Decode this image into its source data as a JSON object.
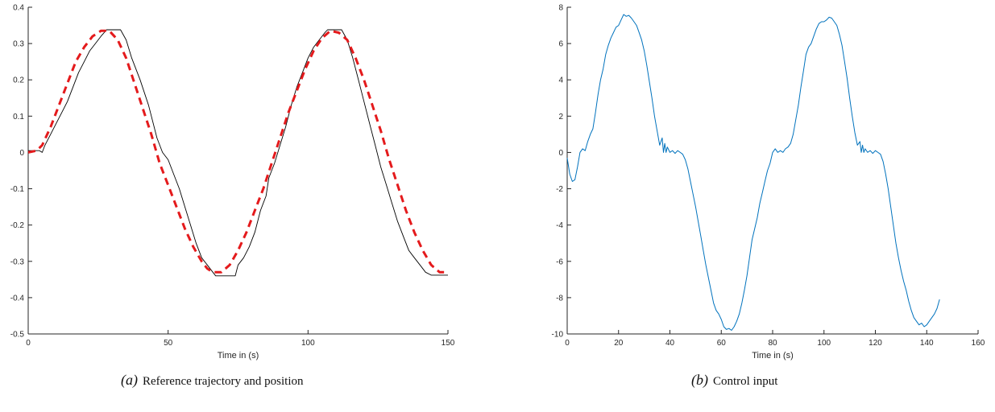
{
  "chart_data": [
    {
      "type": "line",
      "title": "",
      "xlabel": "Time in (s)",
      "ylabel": "",
      "xlim": [
        0,
        150
      ],
      "ylim": [
        -0.5,
        0.4
      ],
      "xticks": [
        0,
        50,
        100,
        150
      ],
      "yticks": [
        0.4,
        0.3,
        0.2,
        0.1,
        0,
        -0.1,
        -0.2,
        -0.3,
        -0.4,
        -0.5
      ],
      "grid": false,
      "caption_tag": "(a)",
      "caption_text": "Reference trajectory and position",
      "series": [
        {
          "color": "#000000",
          "style": "solid",
          "points": [
            [
              0,
              0.005
            ],
            [
              4,
              0.005
            ],
            [
              5,
              0.0
            ],
            [
              6,
              0.02
            ],
            [
              8,
              0.05
            ],
            [
              10,
              0.08
            ],
            [
              12,
              0.11
            ],
            [
              14,
              0.14
            ],
            [
              16,
              0.18
            ],
            [
              18,
              0.22
            ],
            [
              20,
              0.25
            ],
            [
              22,
              0.28
            ],
            [
              24,
              0.3
            ],
            [
              26,
              0.32
            ],
            [
              28,
              0.338
            ],
            [
              33,
              0.338
            ],
            [
              35,
              0.31
            ],
            [
              37,
              0.26
            ],
            [
              40,
              0.2
            ],
            [
              43,
              0.13
            ],
            [
              46,
              0.04
            ],
            [
              48,
              0.0
            ],
            [
              50,
              -0.02
            ],
            [
              52,
              -0.06
            ],
            [
              54,
              -0.1
            ],
            [
              56,
              -0.15
            ],
            [
              58,
              -0.2
            ],
            [
              60,
              -0.25
            ],
            [
              62,
              -0.29
            ],
            [
              64,
              -0.31
            ],
            [
              66,
              -0.33
            ],
            [
              67,
              -0.34
            ],
            [
              74,
              -0.34
            ],
            [
              75,
              -0.31
            ],
            [
              77,
              -0.29
            ],
            [
              79,
              -0.26
            ],
            [
              81,
              -0.22
            ],
            [
              83,
              -0.16
            ],
            [
              85,
              -0.12
            ],
            [
              86,
              -0.07
            ],
            [
              88,
              -0.03
            ],
            [
              90,
              0.02
            ],
            [
              92,
              0.07
            ],
            [
              94,
              0.13
            ],
            [
              96,
              0.18
            ],
            [
              98,
              0.22
            ],
            [
              100,
              0.26
            ],
            [
              102,
              0.29
            ],
            [
              104,
              0.31
            ],
            [
              106,
              0.33
            ],
            [
              107,
              0.338
            ],
            [
              112,
              0.338
            ],
            [
              114,
              0.31
            ],
            [
              116,
              0.26
            ],
            [
              118,
              0.2
            ],
            [
              120,
              0.14
            ],
            [
              122,
              0.08
            ],
            [
              124,
              0.02
            ],
            [
              126,
              -0.04
            ],
            [
              128,
              -0.09
            ],
            [
              130,
              -0.14
            ],
            [
              132,
              -0.19
            ],
            [
              134,
              -0.23
            ],
            [
              136,
              -0.27
            ],
            [
              138,
              -0.29
            ],
            [
              140,
              -0.31
            ],
            [
              142,
              -0.33
            ],
            [
              144,
              -0.338
            ],
            [
              150,
              -0.338
            ]
          ]
        },
        {
          "color": "#e41a1c",
          "style": "dashed",
          "points": [
            [
              0,
              0.0
            ],
            [
              3,
              0.005
            ],
            [
              5,
              0.02
            ],
            [
              8,
              0.07
            ],
            [
              11,
              0.13
            ],
            [
              14,
              0.19
            ],
            [
              17,
              0.25
            ],
            [
              20,
              0.29
            ],
            [
              23,
              0.32
            ],
            [
              26,
              0.335
            ],
            [
              29,
              0.335
            ],
            [
              32,
              0.31
            ],
            [
              35,
              0.26
            ],
            [
              38,
              0.19
            ],
            [
              41,
              0.12
            ],
            [
              44,
              0.05
            ],
            [
              47,
              -0.03
            ],
            [
              50,
              -0.09
            ],
            [
              53,
              -0.15
            ],
            [
              56,
              -0.21
            ],
            [
              59,
              -0.26
            ],
            [
              62,
              -0.3
            ],
            [
              64,
              -0.32
            ],
            [
              66,
              -0.33
            ],
            [
              69,
              -0.33
            ],
            [
              72,
              -0.31
            ],
            [
              75,
              -0.27
            ],
            [
              78,
              -0.22
            ],
            [
              81,
              -0.16
            ],
            [
              84,
              -0.1
            ],
            [
              87,
              -0.03
            ],
            [
              90,
              0.04
            ],
            [
              93,
              0.11
            ],
            [
              96,
              0.17
            ],
            [
              99,
              0.23
            ],
            [
              102,
              0.28
            ],
            [
              105,
              0.315
            ],
            [
              108,
              0.335
            ],
            [
              111,
              0.33
            ],
            [
              114,
              0.31
            ],
            [
              117,
              0.26
            ],
            [
              120,
              0.2
            ],
            [
              123,
              0.13
            ],
            [
              126,
              0.06
            ],
            [
              129,
              -0.02
            ],
            [
              132,
              -0.09
            ],
            [
              135,
              -0.16
            ],
            [
              138,
              -0.22
            ],
            [
              141,
              -0.27
            ],
            [
              144,
              -0.31
            ],
            [
              147,
              -0.33
            ],
            [
              150,
              -0.33
            ]
          ]
        }
      ]
    },
    {
      "type": "line",
      "title": "",
      "xlabel": "Time in (s)",
      "ylabel": "",
      "xlim": [
        0,
        160
      ],
      "ylim": [
        -10,
        8
      ],
      "xticks": [
        0,
        20,
        40,
        60,
        80,
        100,
        120,
        140,
        160
      ],
      "yticks": [
        8,
        6,
        4,
        2,
        0,
        -2,
        -4,
        -6,
        -8,
        -10
      ],
      "grid": false,
      "caption_tag": "(b)",
      "caption_text": "Control input",
      "series": [
        {
          "color": "#0072bd",
          "style": "solid",
          "points": [
            [
              0,
              -0.3
            ],
            [
              1,
              -1.2
            ],
            [
              2,
              -1.6
            ],
            [
              3,
              -1.5
            ],
            [
              4,
              -0.8
            ],
            [
              5,
              0.0
            ],
            [
              6,
              0.2
            ],
            [
              7,
              0.1
            ],
            [
              8,
              0.6
            ],
            [
              9,
              1.0
            ],
            [
              10,
              1.3
            ],
            [
              11,
              2.2
            ],
            [
              12,
              3.2
            ],
            [
              13,
              4.0
            ],
            [
              14,
              4.6
            ],
            [
              15,
              5.4
            ],
            [
              16,
              5.9
            ],
            [
              17,
              6.3
            ],
            [
              18,
              6.6
            ],
            [
              19,
              6.9
            ],
            [
              20,
              7.0
            ],
            [
              21,
              7.3
            ],
            [
              22,
              7.6
            ],
            [
              23,
              7.5
            ],
            [
              24,
              7.55
            ],
            [
              25,
              7.4
            ],
            [
              26,
              7.2
            ],
            [
              27,
              7.0
            ],
            [
              28,
              6.6
            ],
            [
              29,
              6.2
            ],
            [
              30,
              5.6
            ],
            [
              31,
              4.8
            ],
            [
              32,
              3.9
            ],
            [
              33,
              3.0
            ],
            [
              34,
              2.0
            ],
            [
              35,
              1.2
            ],
            [
              36,
              0.4
            ],
            [
              37,
              0.8
            ],
            [
              37.5,
              0.0
            ],
            [
              38,
              0.5
            ],
            [
              38.5,
              0.0
            ],
            [
              39,
              0.3
            ],
            [
              40,
              0.0
            ],
            [
              41,
              0.1
            ],
            [
              42,
              -0.05
            ],
            [
              43,
              0.1
            ],
            [
              44,
              0.0
            ],
            [
              45,
              -0.1
            ],
            [
              46,
              -0.4
            ],
            [
              47,
              -0.9
            ],
            [
              48,
              -1.6
            ],
            [
              49,
              -2.3
            ],
            [
              50,
              -3.0
            ],
            [
              51,
              -3.8
            ],
            [
              52,
              -4.6
            ],
            [
              53,
              -5.4
            ],
            [
              54,
              -6.2
            ],
            [
              55,
              -6.9
            ],
            [
              56,
              -7.6
            ],
            [
              57,
              -8.3
            ],
            [
              58,
              -8.7
            ],
            [
              59,
              -8.9
            ],
            [
              60,
              -9.2
            ],
            [
              61,
              -9.6
            ],
            [
              62,
              -9.75
            ],
            [
              63,
              -9.7
            ],
            [
              64,
              -9.8
            ],
            [
              65,
              -9.6
            ],
            [
              66,
              -9.3
            ],
            [
              67,
              -8.9
            ],
            [
              68,
              -8.3
            ],
            [
              69,
              -7.6
            ],
            [
              70,
              -6.8
            ],
            [
              71,
              -5.8
            ],
            [
              72,
              -4.8
            ],
            [
              73,
              -4.2
            ],
            [
              74,
              -3.6
            ],
            [
              75,
              -2.8
            ],
            [
              76,
              -2.2
            ],
            [
              77,
              -1.6
            ],
            [
              78,
              -1.0
            ],
            [
              79,
              -0.6
            ],
            [
              80,
              0.0
            ],
            [
              81,
              0.2
            ],
            [
              82,
              0.0
            ],
            [
              83,
              0.1
            ],
            [
              84,
              0.0
            ],
            [
              85,
              0.2
            ],
            [
              86,
              0.3
            ],
            [
              87,
              0.5
            ],
            [
              88,
              1.0
            ],
            [
              89,
              1.8
            ],
            [
              90,
              2.6
            ],
            [
              91,
              3.6
            ],
            [
              92,
              4.5
            ],
            [
              93,
              5.4
            ],
            [
              94,
              5.8
            ],
            [
              95,
              6.0
            ],
            [
              96,
              6.4
            ],
            [
              97,
              6.8
            ],
            [
              98,
              7.1
            ],
            [
              99,
              7.2
            ],
            [
              100,
              7.2
            ],
            [
              101,
              7.3
            ],
            [
              102,
              7.45
            ],
            [
              103,
              7.4
            ],
            [
              104,
              7.2
            ],
            [
              105,
              7.0
            ],
            [
              106,
              6.5
            ],
            [
              107,
              5.9
            ],
            [
              108,
              5.0
            ],
            [
              109,
              4.1
            ],
            [
              110,
              3.0
            ],
            [
              111,
              2.0
            ],
            [
              112,
              1.1
            ],
            [
              113,
              0.4
            ],
            [
              114,
              0.6
            ],
            [
              114.5,
              0.0
            ],
            [
              115,
              0.4
            ],
            [
              115.5,
              0.0
            ],
            [
              116,
              0.2
            ],
            [
              117,
              0.0
            ],
            [
              118,
              0.1
            ],
            [
              119,
              -0.05
            ],
            [
              120,
              0.1
            ],
            [
              121,
              0.0
            ],
            [
              122,
              -0.1
            ],
            [
              123,
              -0.5
            ],
            [
              124,
              -1.2
            ],
            [
              125,
              -2.0
            ],
            [
              126,
              -3.0
            ],
            [
              127,
              -4.0
            ],
            [
              128,
              -5.0
            ],
            [
              129,
              -5.8
            ],
            [
              130,
              -6.5
            ],
            [
              131,
              -7.1
            ],
            [
              132,
              -7.6
            ],
            [
              133,
              -8.2
            ],
            [
              134,
              -8.7
            ],
            [
              135,
              -9.1
            ],
            [
              136,
              -9.3
            ],
            [
              137,
              -9.5
            ],
            [
              138,
              -9.4
            ],
            [
              139,
              -9.6
            ],
            [
              140,
              -9.5
            ],
            [
              141,
              -9.3
            ],
            [
              142,
              -9.1
            ],
            [
              143,
              -8.9
            ],
            [
              144,
              -8.6
            ],
            [
              145,
              -8.1
            ]
          ]
        }
      ]
    }
  ]
}
